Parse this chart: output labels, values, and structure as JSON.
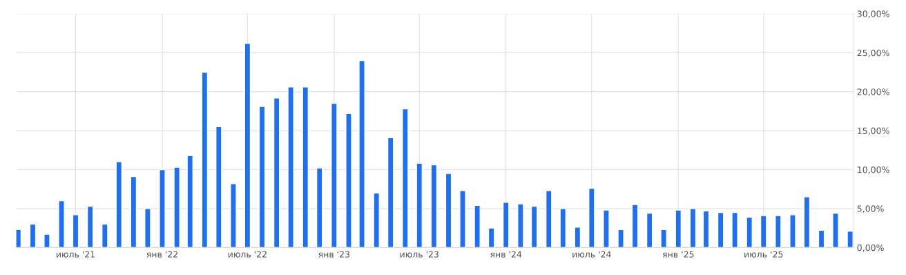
{
  "chart_data": {
    "type": "bar",
    "color": "#1f6ff3",
    "x": [
      "2021-03",
      "2021-04",
      "2021-05",
      "2021-06",
      "2021-07",
      "2021-08",
      "2021-09",
      "2021-10",
      "2021-11",
      "2021-12",
      "2022-01",
      "2022-02",
      "2022-03",
      "2022-04",
      "2022-05",
      "2022-06",
      "2022-07",
      "2022-08",
      "2022-09",
      "2022-10",
      "2022-11",
      "2022-12",
      "2023-01",
      "2023-02",
      "2023-03",
      "2023-04",
      "2023-05",
      "2023-06",
      "2023-07",
      "2023-08",
      "2023-09",
      "2023-10",
      "2023-11",
      "2023-12",
      "2024-01",
      "2024-02",
      "2024-03",
      "2024-04",
      "2024-05",
      "2024-06",
      "2024-07",
      "2024-08",
      "2024-09",
      "2024-10",
      "2024-11",
      "2024-12",
      "2025-01",
      "2025-02",
      "2025-03",
      "2025-04",
      "2025-05",
      "2025-06",
      "2025-07",
      "2025-08",
      "2025-09",
      "2025-10",
      "2025-11",
      "2025-12",
      "2026-01"
    ],
    "values": [
      2.3,
      3.0,
      1.7,
      6.0,
      4.2,
      5.3,
      3.0,
      11.0,
      9.1,
      5.0,
      10.0,
      10.3,
      11.8,
      22.5,
      15.5,
      8.2,
      26.2,
      18.1,
      19.2,
      20.6,
      20.6,
      10.2,
      18.5,
      17.2,
      24.0,
      7.0,
      14.1,
      17.8,
      10.8,
      10.6,
      9.5,
      7.3,
      5.4,
      2.5,
      5.8,
      5.6,
      5.3,
      7.3,
      5.0,
      2.6,
      7.6,
      4.8,
      2.3,
      5.5,
      4.4,
      2.3,
      4.8,
      5.0,
      4.7,
      4.5,
      4.5,
      3.9,
      4.1,
      4.1,
      4.2,
      6.5,
      2.2,
      4.4,
      2.1
    ],
    "xlim": [
      "2021-02-25",
      "2026-01-08"
    ],
    "xticks": [
      {
        "value": "2021-07",
        "label": "июль '21"
      },
      {
        "value": "2022-01",
        "label": "янв '22"
      },
      {
        "value": "2022-07",
        "label": "июль '22"
      },
      {
        "value": "2023-01",
        "label": "янв '23"
      },
      {
        "value": "2023-07",
        "label": "июль '23"
      },
      {
        "value": "2024-01",
        "label": "янв '24"
      },
      {
        "value": "2024-07",
        "label": "июль '24"
      },
      {
        "value": "2025-01",
        "label": "янв '25"
      },
      {
        "value": "2025-07",
        "label": "июль '25"
      }
    ],
    "ylim": [
      0,
      30
    ],
    "yticks": [
      {
        "value": 0,
        "label": "0,00%"
      },
      {
        "value": 5,
        "label": "5,00%"
      },
      {
        "value": 10,
        "label": "10,00%"
      },
      {
        "value": 15,
        "label": "15,00%"
      },
      {
        "value": 20,
        "label": "20,00%"
      },
      {
        "value": 25,
        "label": "25,00%"
      },
      {
        "value": 30,
        "label": "30,00%"
      }
    ],
    "grid": true
  }
}
